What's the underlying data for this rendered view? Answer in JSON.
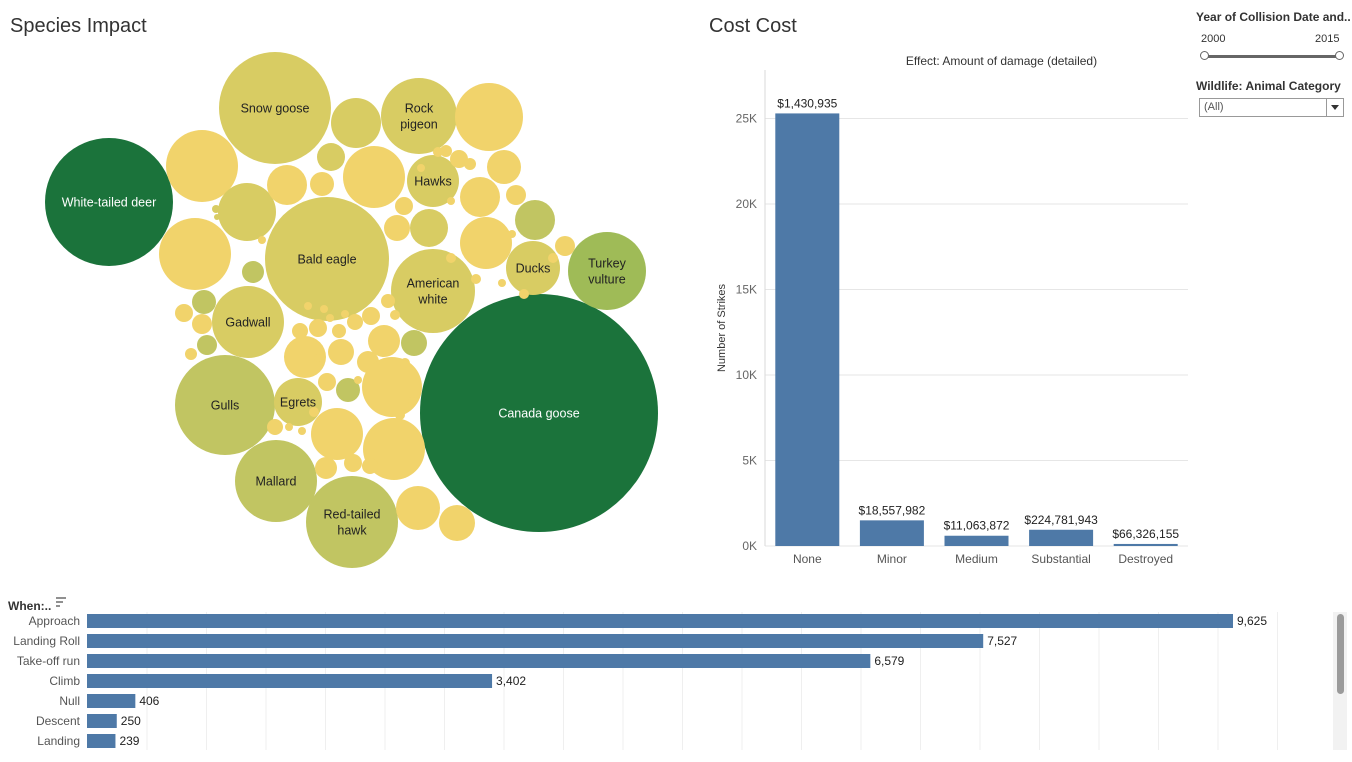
{
  "species_panel": {
    "title": "Species Impact",
    "colors": {
      "high": "#1b733b",
      "mid_green": "#9fbb57",
      "olive": "#c1c562",
      "khaki": "#d8cc63",
      "yellow": "#f1d36b"
    },
    "labeled_bubbles": [
      {
        "label": "Canada goose",
        "color": "high",
        "text_color": "#ffffff"
      },
      {
        "label": "White-tailed deer",
        "color": "high",
        "text_color": "#ffffff"
      },
      {
        "label": "Snow goose",
        "color": "khaki",
        "text_color": "#222222"
      },
      {
        "label": "Bald eagle",
        "color": "khaki",
        "text_color": "#222222"
      },
      {
        "label": "Rock pigeon",
        "color": "khaki",
        "text_color": "#222222"
      },
      {
        "label": "Hawks",
        "color": "khaki",
        "text_color": "#222222"
      },
      {
        "label": "American white",
        "color": "khaki",
        "text_color": "#222222"
      },
      {
        "label": "Ducks",
        "color": "khaki",
        "text_color": "#222222"
      },
      {
        "label": "Turkey vulture",
        "color": "mid_green",
        "text_color": "#222222"
      },
      {
        "label": "Gadwall",
        "color": "khaki",
        "text_color": "#222222"
      },
      {
        "label": "Gulls",
        "color": "olive",
        "text_color": "#222222"
      },
      {
        "label": "Egrets",
        "color": "khaki",
        "text_color": "#222222"
      },
      {
        "label": "Mallard",
        "color": "olive",
        "text_color": "#222222"
      },
      {
        "label": "Red-tailed hawk",
        "color": "olive",
        "text_color": "#222222"
      }
    ]
  },
  "cost_panel": {
    "title": "Cost Cost"
  },
  "filters": {
    "year_title": "Year of Collision Date and..",
    "year_min": "2000",
    "year_max": "2015",
    "animal_title": "Wildlife: Animal Category",
    "animal_value": "(All)"
  },
  "chart_data": [
    {
      "type": "bar",
      "title": "Effect: Amount of damage (detailed)",
      "xlabel": "",
      "ylabel": "Number of Strikes",
      "categories": [
        "None",
        "Minor",
        "Medium",
        "Substantial",
        "Destroyed"
      ],
      "values": [
        25300,
        1500,
        600,
        950,
        120
      ],
      "data_labels": [
        "$1,430,935",
        "$18,557,982",
        "$11,063,872",
        "$224,781,943",
        "$66,326,155"
      ],
      "y_ticks": [
        0,
        5000,
        10000,
        15000,
        20000,
        25000
      ],
      "y_tick_labels": [
        "0K",
        "5K",
        "10K",
        "15K",
        "20K",
        "25K"
      ],
      "ylim": [
        0,
        25500
      ],
      "grid": true,
      "color": "#4e79a7"
    },
    {
      "type": "bar",
      "orientation": "horizontal",
      "title": "When:..",
      "categories": [
        "Approach",
        "Landing Roll",
        "Take-off run",
        "Climb",
        "Null",
        "Descent",
        "Landing"
      ],
      "values": [
        9625,
        7527,
        6579,
        3402,
        406,
        250,
        239
      ],
      "data_labels": [
        "9,625",
        "7,527",
        "6,579",
        "3,402",
        "406",
        "250",
        "239"
      ],
      "xlim": [
        0,
        10000
      ],
      "color": "#4e79a7"
    }
  ]
}
